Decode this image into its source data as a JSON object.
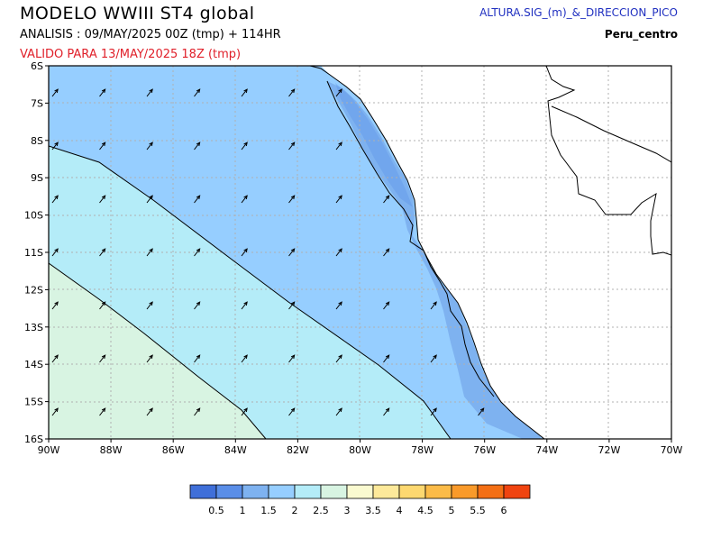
{
  "header": {
    "title": "MODELO WWIII ST4 global",
    "analysis": "ANALISIS : 09/MAY/2025 00Z  (tmp) + 114HR",
    "valid": "VALIDO PARA  13/MAY/2025 18Z  (tmp)",
    "variable": "ALTURA.SIG_(m)_&_DIRECCION_PICO",
    "region": "Peru_centro"
  },
  "map": {
    "lon_ticks": [
      "90W",
      "88W",
      "86W",
      "84W",
      "82W",
      "80W",
      "78W",
      "76W",
      "74W",
      "72W",
      "70W"
    ],
    "lat_ticks": [
      "6S",
      "7S",
      "8S",
      "9S",
      "10S",
      "11S",
      "12S",
      "13S",
      "14S",
      "15S",
      "16S"
    ],
    "lon_range": [
      -90,
      -70
    ],
    "lat_range": [
      -16,
      -6
    ],
    "grid": true,
    "land_color": "#ffffff",
    "wave_direction_icon": "arrow-icon",
    "arrow_direction": "northeast"
  },
  "legend": {
    "colors": [
      "#3f6fd9",
      "#5a8ee8",
      "#7eb2f0",
      "#96ceff",
      "#b4ecf8",
      "#d8f4e2",
      "#fafad0",
      "#fde99a",
      "#fdd870",
      "#fbbb48",
      "#f99a2a",
      "#f46f14",
      "#f04410"
    ],
    "labels": [
      "0.5",
      "1",
      "1.5",
      "2",
      "2.5",
      "3",
      "3.5",
      "4",
      "4.5",
      "5",
      "5.5",
      "6"
    ]
  }
}
